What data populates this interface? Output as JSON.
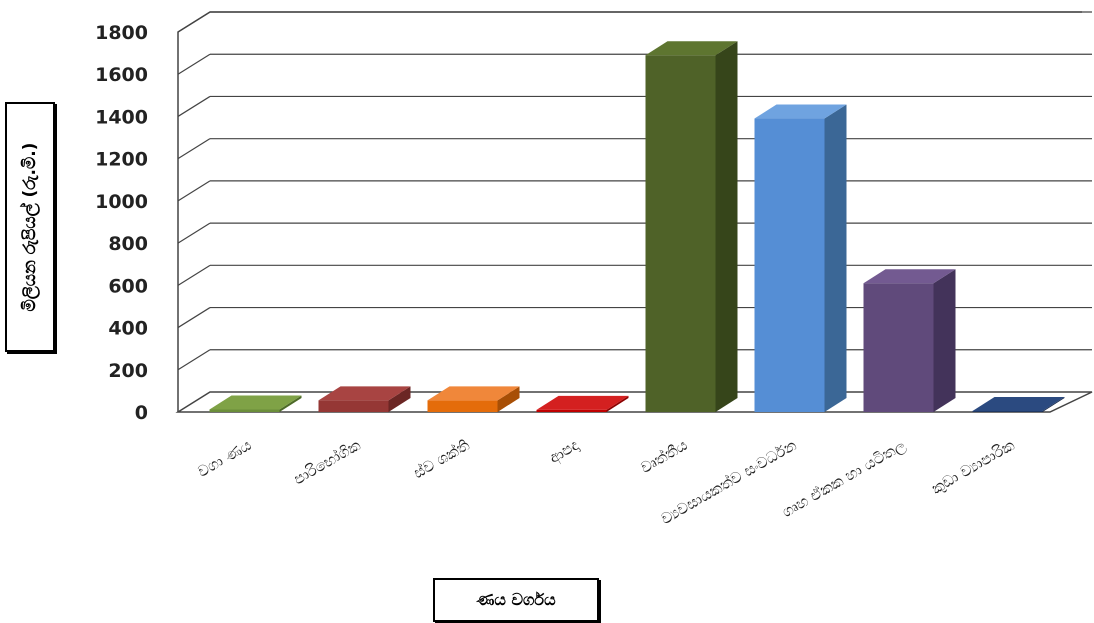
{
  "chart_data": {
    "type": "bar",
    "style": "3d-column",
    "categories": [
      "වගා ණය",
      "පාරිභෝගික",
      "ස්ව ශක්ති",
      "ආපදා",
      "වෘත්තීය",
      "ව්‍යවසායකත්ව සංවර්ධන",
      "ගෘහ ඒකක හා යටිතල",
      "කුඩා ව්‍යාපාරික"
    ],
    "values": [
      12,
      55,
      55,
      10,
      1690,
      1390,
      610,
      5
    ],
    "colors": [
      "#6b8e3a",
      "#953735",
      "#e46c0a",
      "#c00000",
      "#4f6228",
      "#558ed5",
      "#604a7b",
      "#1f3864"
    ],
    "side_colors": [
      "#4d6a28",
      "#6b2624",
      "#a84f06",
      "#8c0000",
      "#36451a",
      "#3b6796",
      "#43335a",
      "#142648"
    ],
    "top_colors": [
      "#7fa246",
      "#a84442",
      "#f0873a",
      "#d42020",
      "#5e7530",
      "#6fa3e0",
      "#735a91",
      "#2b4a80"
    ],
    "ylim": [
      0,
      1800
    ],
    "yticks": [
      0,
      200,
      400,
      600,
      800,
      1000,
      1200,
      1400,
      1600,
      1800
    ],
    "ylabel": "මිලියන රුපියල් (රු.මි.)",
    "xlabel": "ණය වර්ගය",
    "grid": true,
    "legend": "none"
  }
}
